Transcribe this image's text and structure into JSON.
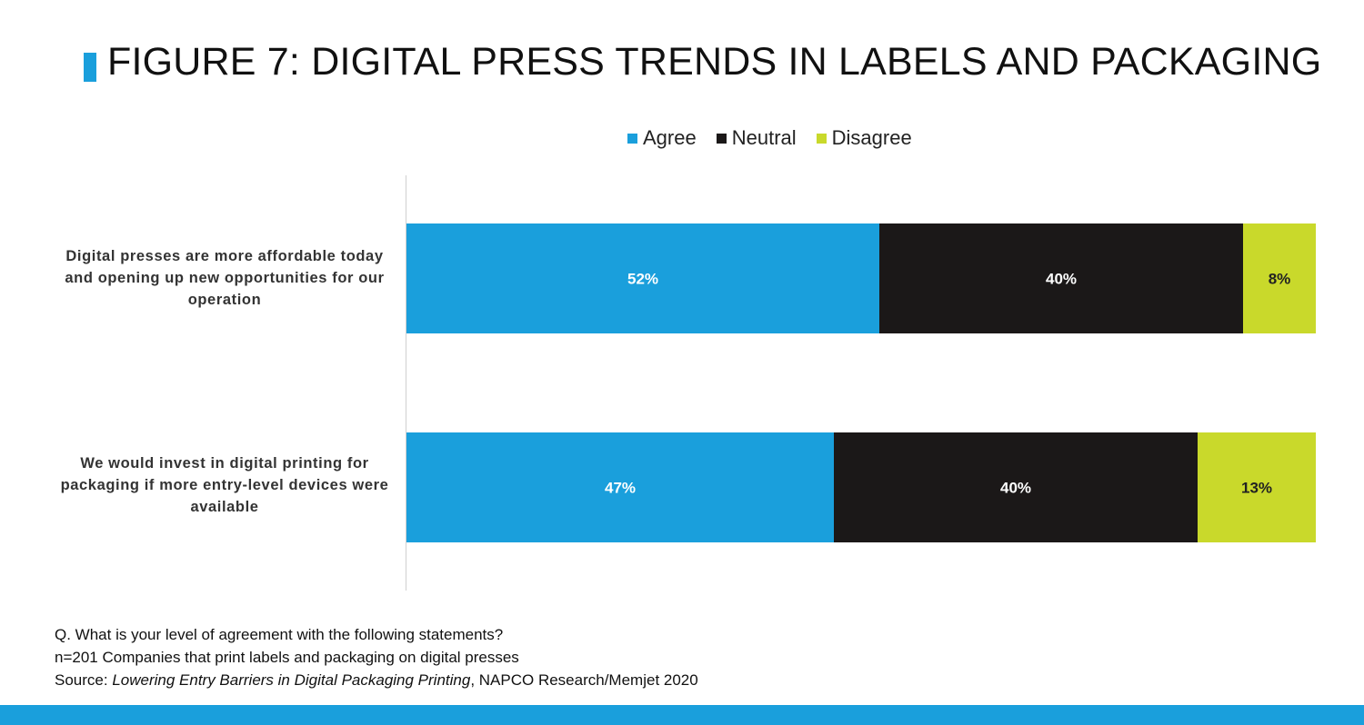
{
  "title": "FIGURE 7: DIGITAL PRESS TRENDS IN LABELS AND PACKAGING",
  "chart_data": {
    "type": "bar",
    "orientation": "horizontal",
    "stacked": true,
    "unit": "%",
    "xlim": [
      0,
      100
    ],
    "grid": false,
    "legend_placement": "top",
    "categories": [
      "Digital presses are more affordable today and opening up new opportunities for our operation",
      "We would invest in digital printing for packaging if more entry-level devices were available"
    ],
    "series": [
      {
        "name": "Agree",
        "color": "#1a9fdc",
        "label_color": "#ffffff",
        "values": [
          52,
          47
        ]
      },
      {
        "name": "Neutral",
        "color": "#1b1818",
        "label_color": "#ffffff",
        "values": [
          40,
          40
        ]
      },
      {
        "name": "Disagree",
        "color": "#c9d92b",
        "label_color": "#222222",
        "values": [
          8,
          13
        ]
      }
    ],
    "data_labels": [
      [
        "52%",
        "40%",
        "8%"
      ],
      [
        "47%",
        "40%",
        "13%"
      ]
    ]
  },
  "notes": {
    "question": "Q. What is your level of agreement with the following statements?",
    "sample": "n=201 Companies that print labels and packaging on digital presses",
    "source_prefix": "Source: ",
    "source_title": "Lowering Entry Barriers in Digital Packaging Printing",
    "source_suffix": ", NAPCO Research/Memjet 2020"
  }
}
